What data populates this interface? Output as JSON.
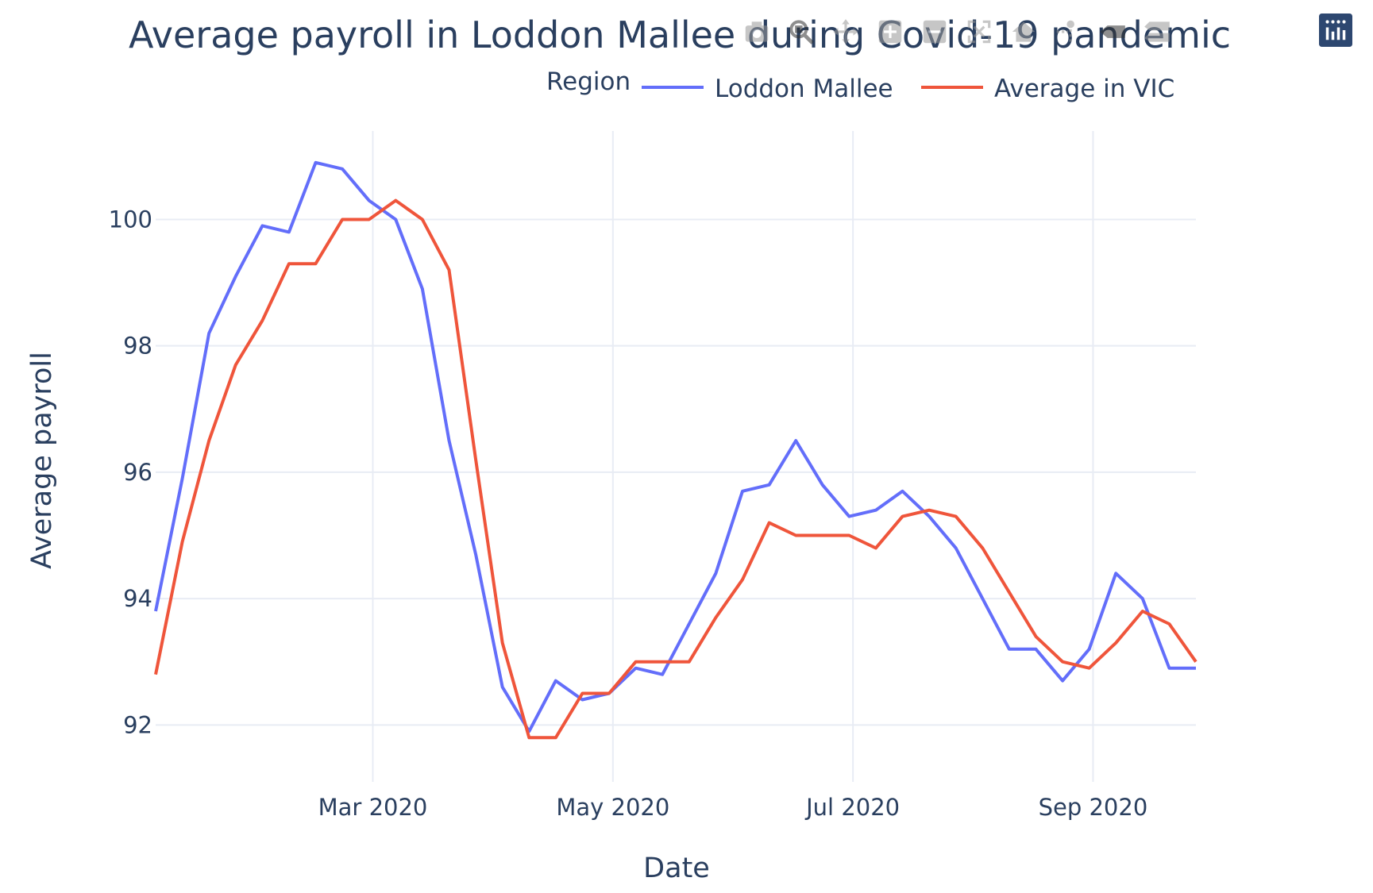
{
  "chart_data": {
    "type": "line",
    "title": "Average payroll in Loddon Mallee during Covid-19 pandemic",
    "xlabel": "Date",
    "ylabel": "Average payroll",
    "legend_title": "Region",
    "legend_position": "top-right",
    "grid": true,
    "x_ticks": [
      {
        "label": "Mar 2020",
        "date": "2020-03-01"
      },
      {
        "label": "May 2020",
        "date": "2020-05-03"
      },
      {
        "label": "Jul 2020",
        "date": "2020-07-05"
      },
      {
        "label": "Sep 2020",
        "date": "2020-09-06"
      }
    ],
    "y_ticks": [
      92,
      94,
      96,
      98,
      100
    ],
    "xlim": [
      "2020-01-04",
      "2020-10-03"
    ],
    "ylim": [
      91.1,
      101.4
    ],
    "x": [
      "2020-01-04",
      "2020-01-11",
      "2020-01-18",
      "2020-01-25",
      "2020-02-01",
      "2020-02-08",
      "2020-02-15",
      "2020-02-22",
      "2020-02-29",
      "2020-03-07",
      "2020-03-14",
      "2020-03-21",
      "2020-03-28",
      "2020-04-04",
      "2020-04-11",
      "2020-04-18",
      "2020-04-25",
      "2020-05-02",
      "2020-05-09",
      "2020-05-16",
      "2020-05-23",
      "2020-05-30",
      "2020-06-06",
      "2020-06-13",
      "2020-06-20",
      "2020-06-27",
      "2020-07-04",
      "2020-07-11",
      "2020-07-18",
      "2020-07-25",
      "2020-08-01",
      "2020-08-08",
      "2020-08-15",
      "2020-08-22",
      "2020-08-29",
      "2020-09-05",
      "2020-09-12",
      "2020-09-19",
      "2020-09-26",
      "2020-10-03"
    ],
    "series": [
      {
        "name": "Loddon Mallee",
        "color": "#636efa",
        "values": [
          93.8,
          95.9,
          98.2,
          99.1,
          99.9,
          99.8,
          100.9,
          100.8,
          100.3,
          100.0,
          98.9,
          96.5,
          94.7,
          92.6,
          91.9,
          92.7,
          92.4,
          92.5,
          92.9,
          92.8,
          93.6,
          94.4,
          95.7,
          95.8,
          96.5,
          95.8,
          95.3,
          95.4,
          95.7,
          95.3,
          94.8,
          94.0,
          93.2,
          93.2,
          92.7,
          93.2,
          94.4,
          94.0,
          92.9,
          92.9
        ]
      },
      {
        "name": "Average in VIC",
        "color": "#ef553b",
        "values": [
          92.8,
          94.9,
          96.5,
          97.7,
          98.4,
          99.3,
          99.3,
          100.0,
          100.0,
          100.3,
          100.0,
          99.2,
          96.2,
          93.3,
          91.8,
          91.8,
          92.5,
          92.5,
          93.0,
          93.0,
          93.0,
          93.7,
          94.3,
          95.2,
          95.0,
          95.0,
          95.0,
          94.8,
          95.3,
          95.4,
          95.3,
          94.8,
          94.1,
          93.4,
          93.0,
          92.9,
          93.3,
          93.8,
          93.6,
          93.0
        ]
      }
    ]
  },
  "modebar": {
    "icons": [
      "camera-icon",
      "zoom-icon",
      "pan-icon",
      "zoom-in-icon",
      "zoom-out-icon",
      "autoscale-icon",
      "reset-axes-icon",
      "spike-lines-icon",
      "hover-closest-icon",
      "hover-compare-icon",
      "plotly-logo-icon"
    ]
  }
}
